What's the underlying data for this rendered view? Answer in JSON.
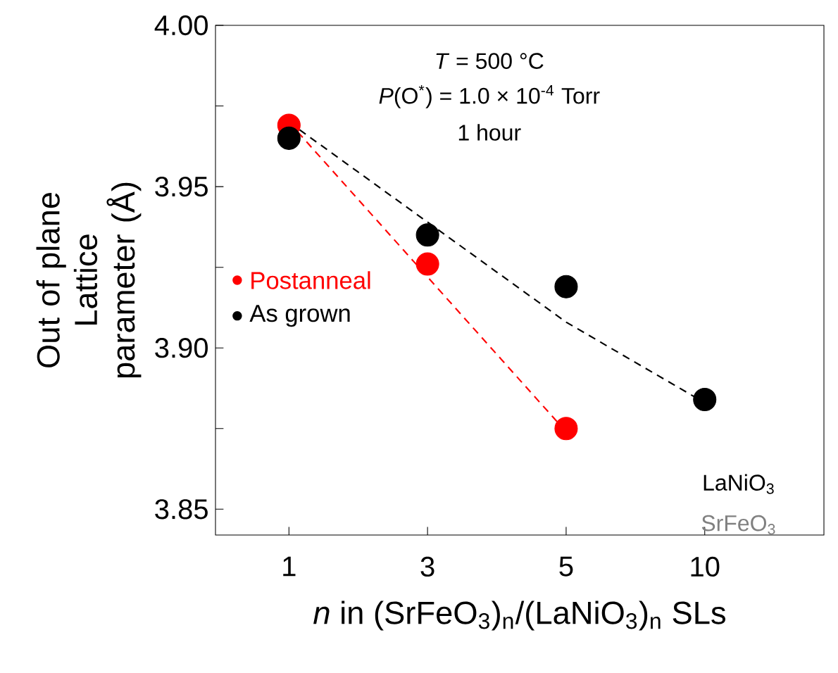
{
  "chart_data": {
    "type": "scatter",
    "ylabel": "Out of plane Lattice parameter (Å)",
    "xlabel": "*n* in (SrFeO$_{3}$)$_{n}$/(LaNiO$_{3}$)$_{n}$ SLs",
    "categories": [
      "1",
      "3",
      "5",
      "10"
    ],
    "ylim": [
      3.842,
      4.0
    ],
    "yticks": [
      {
        "value": 3.85,
        "label": "3.85"
      },
      {
        "value": 3.875,
        "label": null
      },
      {
        "value": 3.9,
        "label": "3.90"
      },
      {
        "value": 3.925,
        "label": null
      },
      {
        "value": 3.95,
        "label": "3.95"
      },
      {
        "value": 3.975,
        "label": null
      },
      {
        "value": 4.0,
        "label": "4.00"
      }
    ],
    "series": [
      {
        "name": "Postanneal",
        "marker": "circle",
        "color": "#ff0000",
        "values": [
          3.969,
          3.926,
          3.875,
          null
        ]
      },
      {
        "name": "As grown",
        "marker": "circle",
        "color": "#000000",
        "values": [
          3.965,
          3.935,
          3.919,
          3.884
        ]
      },
      {
        "type": "line",
        "marker": "none",
        "color": "#ff0000",
        "values": [
          3.97,
          3.922,
          3.874,
          null
        ]
      },
      {
        "type": "line",
        "marker": "none",
        "color": "#000000",
        "values": [
          3.97,
          3.939,
          3.908,
          3.883
        ]
      }
    ],
    "line_style": "dashed",
    "legend": "left",
    "annotations": [
      "*T* = 500 °C",
      "*P*(O$^{*}$) = 1.0 × 10$^{-4}$ Torr",
      "1 hour",
      "LaNiO$_{3}$",
      "SrFeO$_{3}$"
    ]
  }
}
